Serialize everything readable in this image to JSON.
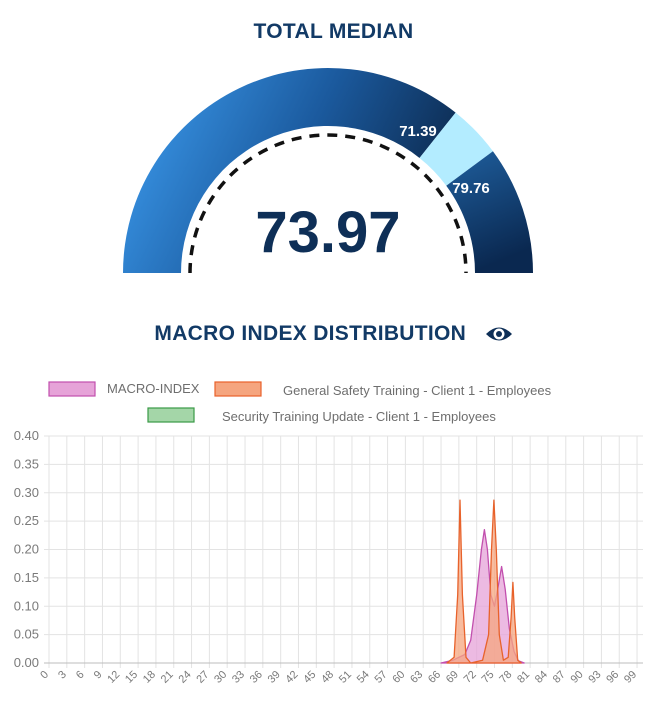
{
  "gauge": {
    "title": "TOTAL MEDIAN",
    "value": "73.97",
    "lower_label": "71.39",
    "upper_label": "79.76",
    "lower": 71.39,
    "upper": 79.76,
    "colors": {
      "light": "#3fa1f5",
      "dark": "#0e2f57",
      "band": "#b3ecff",
      "needle_ring": "#111111"
    }
  },
  "distribution": {
    "title": "MACRO INDEX DISTRIBUTION",
    "eye_icon": "eye-icon"
  },
  "chart_data": {
    "type": "area",
    "title": "",
    "xlabel": "",
    "ylabel": "",
    "xlim": [
      0,
      100
    ],
    "ylim": [
      0,
      0.4
    ],
    "grid": true,
    "legend_placement": "top",
    "x_ticks": [
      0,
      3,
      6,
      9,
      12,
      15,
      18,
      21,
      24,
      27,
      30,
      33,
      36,
      39,
      42,
      45,
      48,
      51,
      54,
      57,
      60,
      63,
      66,
      69,
      72,
      75,
      78,
      81,
      84,
      87,
      90,
      93,
      96,
      99
    ],
    "y_ticks": [
      "0.00",
      "0.05",
      "0.10",
      "0.15",
      "0.20",
      "0.25",
      "0.30",
      "0.35",
      "0.40"
    ],
    "series": [
      {
        "name": "MACRO-INDEX",
        "fill": "#e6a3d8",
        "stroke": "#c24fae",
        "points": [
          [
            66,
            0
          ],
          [
            68,
            0.005
          ],
          [
            70,
            0.015
          ],
          [
            71,
            0.04
          ],
          [
            72,
            0.12
          ],
          [
            72.8,
            0.2
          ],
          [
            73.3,
            0.235
          ],
          [
            73.8,
            0.2
          ],
          [
            74.4,
            0.12
          ],
          [
            75,
            0.1
          ],
          [
            75.7,
            0.14
          ],
          [
            76.2,
            0.17
          ],
          [
            76.8,
            0.13
          ],
          [
            77.5,
            0.06
          ],
          [
            78.3,
            0.02
          ],
          [
            79,
            0.004
          ],
          [
            80,
            0
          ]
        ]
      },
      {
        "name": "General Safety Training - Client 1 -  Employees",
        "fill": "#f5a57f",
        "stroke": "#e8622b",
        "points": [
          [
            67,
            0
          ],
          [
            68.2,
            0.01
          ],
          [
            68.8,
            0.12
          ],
          [
            69.2,
            0.287
          ],
          [
            69.6,
            0.12
          ],
          [
            70.2,
            0.01
          ],
          [
            71,
            0
          ],
          [
            73,
            0.005
          ],
          [
            74,
            0.05
          ],
          [
            74.5,
            0.2
          ],
          [
            74.9,
            0.287
          ],
          [
            75.3,
            0.2
          ],
          [
            75.8,
            0.05
          ],
          [
            76.5,
            0.005
          ],
          [
            77.3,
            0.01
          ],
          [
            77.8,
            0.08
          ],
          [
            78.1,
            0.142
          ],
          [
            78.4,
            0.08
          ],
          [
            78.9,
            0.005
          ],
          [
            79.5,
            0
          ]
        ]
      },
      {
        "name": "Security Training Update - Client 1 - Employees",
        "fill": "#a4d6a8",
        "stroke": "#3a9a46",
        "points": []
      }
    ]
  }
}
